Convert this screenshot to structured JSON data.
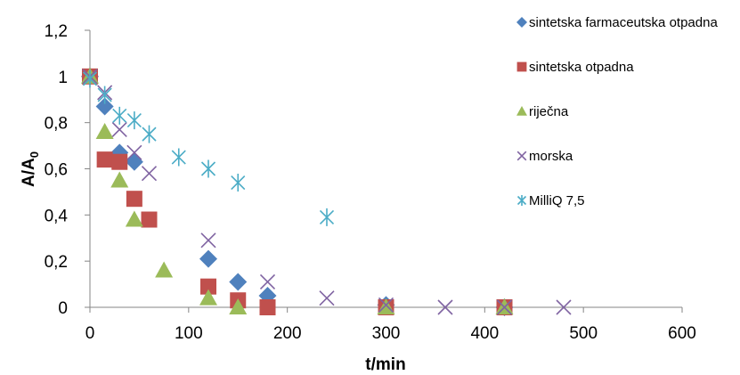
{
  "chart_data": {
    "type": "scatter",
    "title": "",
    "xlabel": "t/min",
    "ylabel": {
      "main": "A/A",
      "subscript": "0"
    },
    "xlim": [
      0,
      600
    ],
    "ylim": [
      0,
      1.2
    ],
    "x_ticks": [
      0,
      100,
      200,
      300,
      400,
      500,
      600
    ],
    "x_tick_labels": [
      "0",
      "100",
      "200",
      "300",
      "400",
      "500",
      "600"
    ],
    "y_ticks": [
      0,
      0.2,
      0.4,
      0.6,
      0.8,
      1.0,
      1.2
    ],
    "y_tick_labels": [
      "0",
      "0,2",
      "0,4",
      "0,6",
      "0,8",
      "1",
      "1,2"
    ],
    "grid": false,
    "legend_position": "right",
    "series": [
      {
        "name": "sintetska farmaceutska otpadna",
        "marker": "diamond",
        "color": "#4F81BD",
        "x": [
          0,
          15,
          30,
          45,
          120,
          150,
          180,
          300,
          420
        ],
        "y": [
          1.0,
          0.87,
          0.67,
          0.63,
          0.21,
          0.11,
          0.05,
          0.01,
          0.0
        ]
      },
      {
        "name": "sintetska otpadna",
        "marker": "square",
        "color": "#C0504D",
        "x": [
          0,
          15,
          30,
          45,
          60,
          120,
          150,
          180,
          300,
          420
        ],
        "y": [
          1.0,
          0.64,
          0.63,
          0.47,
          0.38,
          0.09,
          0.03,
          0.0,
          0.0,
          0.0
        ]
      },
      {
        "name": "riječna",
        "marker": "triangle",
        "color": "#9BBB59",
        "x": [
          0,
          15,
          30,
          45,
          75,
          120,
          150,
          300,
          420
        ],
        "y": [
          1.0,
          0.76,
          0.55,
          0.38,
          0.16,
          0.04,
          0.0,
          0.0,
          0.0
        ]
      },
      {
        "name": "morska",
        "marker": "x",
        "color": "#8064A2",
        "x": [
          0,
          15,
          30,
          45,
          60,
          120,
          180,
          240,
          300,
          360,
          420,
          480
        ],
        "y": [
          1.0,
          0.93,
          0.77,
          0.67,
          0.58,
          0.29,
          0.11,
          0.04,
          0.01,
          0.0,
          0.0,
          0.0
        ]
      },
      {
        "name": "MilliQ 7,5",
        "marker": "star",
        "color": "#4BACC6",
        "x": [
          0,
          15,
          30,
          45,
          60,
          90,
          120,
          150,
          240
        ],
        "y": [
          0.99,
          0.92,
          0.83,
          0.81,
          0.75,
          0.65,
          0.6,
          0.54,
          0.39
        ]
      }
    ]
  }
}
